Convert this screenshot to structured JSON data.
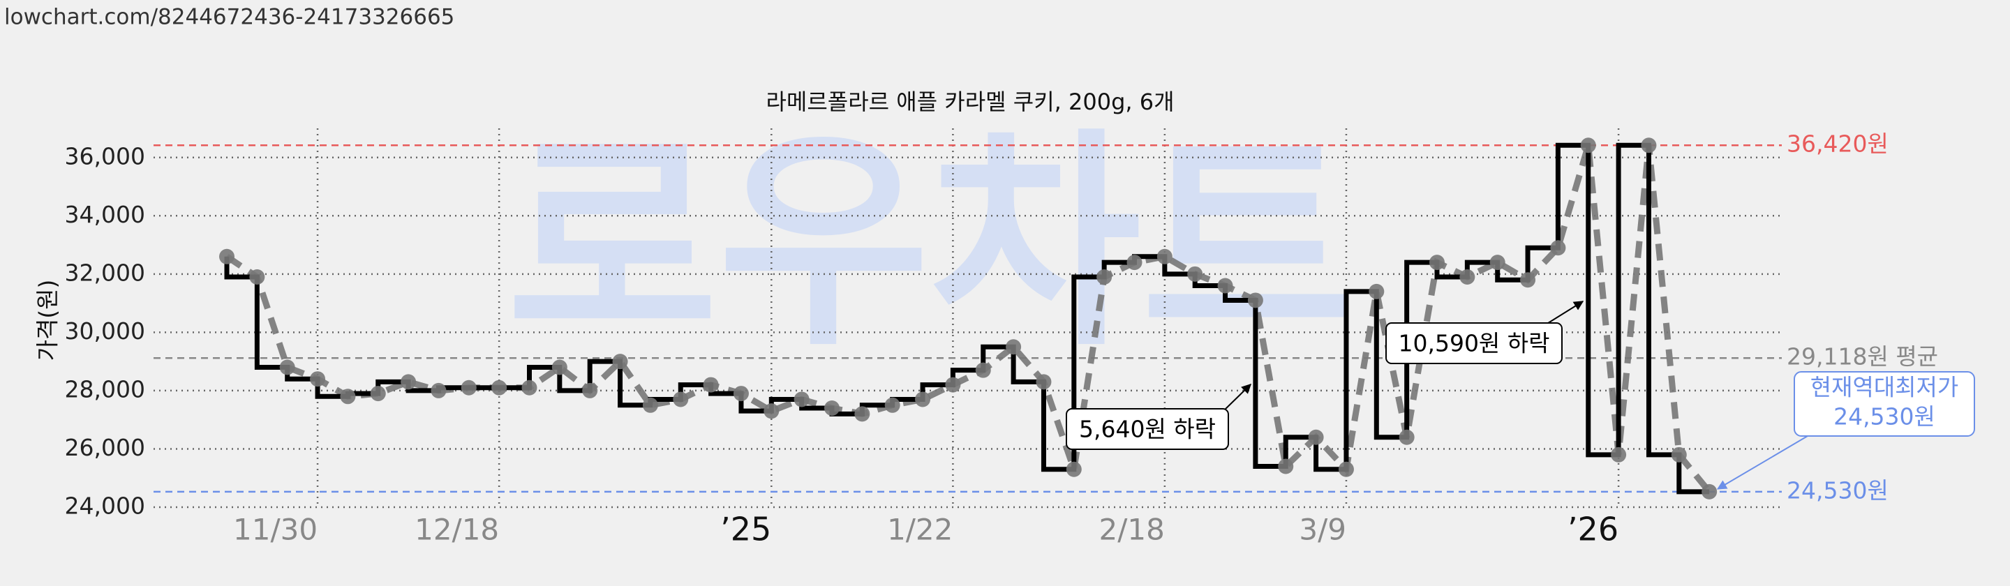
{
  "url": "lowchart.com/8244672436-24173326665",
  "chart_data": {
    "type": "price-step",
    "title": "라메르폴라르 애플 카라멜 쿠키, 200g, 6개",
    "y_label": "가격(원)",
    "watermark": "로우차트",
    "categories": [
      null,
      null,
      null,
      "11/30",
      null,
      null,
      null,
      null,
      null,
      "12/18",
      null,
      null,
      null,
      null,
      null,
      null,
      null,
      null,
      "’25",
      null,
      null,
      null,
      null,
      null,
      "1/22",
      null,
      null,
      null,
      null,
      null,
      null,
      "2/18",
      null,
      null,
      null,
      null,
      null,
      "3/9",
      null,
      null,
      null,
      null,
      null,
      null,
      null,
      null,
      "’26",
      null,
      null,
      null
    ],
    "values": [
      32600,
      31900,
      28800,
      28400,
      27800,
      27900,
      28300,
      28000,
      28100,
      28100,
      28100,
      28800,
      28000,
      29000,
      27500,
      27700,
      28200,
      27900,
      27300,
      27700,
      27400,
      27200,
      27500,
      27700,
      28200,
      28700,
      29500,
      28300,
      25300,
      31900,
      32400,
      32600,
      32000,
      31600,
      31100,
      25400,
      26400,
      25300,
      31400,
      26400,
      32400,
      31900,
      32400,
      31800,
      32900,
      36420,
      25800,
      36420,
      25800,
      24530
    ],
    "line_color": "#000000",
    "trend_color": "#777777",
    "ylim": [
      24000,
      37000
    ],
    "yticks": [
      {
        "value": 24000,
        "label": "24,000"
      },
      {
        "value": 26000,
        "label": "26,000"
      },
      {
        "value": 28000,
        "label": "28,000"
      },
      {
        "value": 30000,
        "label": "30,000"
      },
      {
        "value": 32000,
        "label": "32,000"
      },
      {
        "value": 34000,
        "label": "34,000"
      },
      {
        "value": 36000,
        "label": "36,000"
      }
    ],
    "grid": true,
    "reference_lines": [
      {
        "value": 36420,
        "label": "36,420원",
        "color": "#e85a5a"
      },
      {
        "value": 29118,
        "label": "29,118원 평균",
        "color": "#888888"
      },
      {
        "value": 24530,
        "label": "24,530원",
        "color": "#6b8fe8"
      }
    ],
    "annotations": [
      {
        "text": "5,640원 하락"
      },
      {
        "text": "10,590원 하락"
      }
    ],
    "current_low_note": [
      "현재역대최저가",
      "24,530원"
    ]
  }
}
